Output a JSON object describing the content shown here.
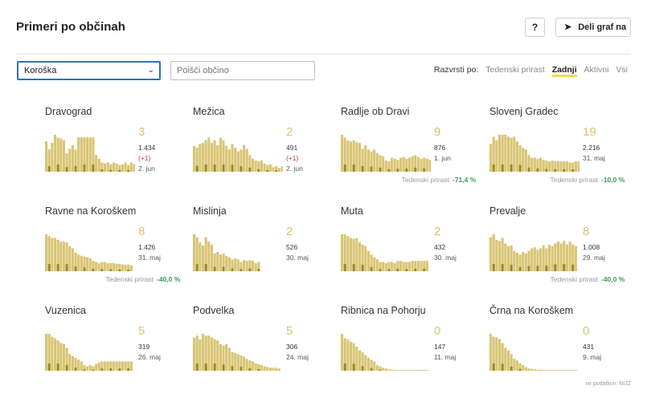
{
  "header": {
    "title": "Primeri po občinah",
    "help_label": "?",
    "share_label": "Deli graf na"
  },
  "controls": {
    "region_value": "Koroška",
    "search_placeholder": "Poišči občino",
    "sort_label": "Razvrsti po:",
    "sort_options": [
      "Tedenski prirast",
      "Zadnji",
      "Aktivni",
      "Vsi"
    ],
    "sort_active": "Zadnji"
  },
  "trend_label": "Tedenski prirast",
  "source_text": "vir podatkov: NIJZ",
  "colors": {
    "bar": "#d9c473",
    "bar_dark": "#9a8a1e",
    "count": "#d9c473",
    "positive": "#3d9a55",
    "accent": "#f1dd44"
  },
  "municipalities": [
    {
      "name": "Dravograd",
      "count": "3",
      "total": "1.434",
      "delta": "(+1)",
      "date": "2. jun",
      "trend": "",
      "bars": [
        0.82,
        0.6,
        0.78,
        1.0,
        0.92,
        0.9,
        0.85,
        0.5,
        0.62,
        0.72,
        0.6,
        0.93,
        0.93,
        0.93,
        0.93,
        0.93,
        0.93,
        0.45,
        0.35,
        0.25,
        0.22,
        0.25,
        0.2,
        0.25,
        0.22,
        0.18,
        0.2,
        0.25,
        0.18,
        0.25,
        0.2,
        0.12
      ]
    },
    {
      "name": "Mežica",
      "count": "2",
      "total": "491",
      "delta": "(+1)",
      "date": "2. jun",
      "trend": "",
      "bars": [
        0.7,
        0.65,
        0.75,
        0.78,
        0.85,
        0.92,
        0.78,
        0.85,
        0.72,
        0.92,
        0.85,
        0.7,
        0.6,
        0.75,
        0.65,
        0.55,
        0.6,
        0.72,
        0.62,
        0.45,
        0.35,
        0.3,
        0.28,
        0.3,
        0.22,
        0.18,
        0.2,
        0.12,
        0.15,
        0.1,
        0.15,
        0.12
      ]
    },
    {
      "name": "Radlje ob Dravi",
      "count": "9",
      "total": "876",
      "delta": "",
      "date": "1. jun",
      "trend": "-71,4 %",
      "bars": [
        1.0,
        0.92,
        0.85,
        0.82,
        0.85,
        0.8,
        0.78,
        0.62,
        0.72,
        0.6,
        0.55,
        0.6,
        0.5,
        0.45,
        0.42,
        0.3,
        0.28,
        0.38,
        0.35,
        0.32,
        0.38,
        0.4,
        0.35,
        0.38,
        0.42,
        0.45,
        0.4,
        0.35,
        0.38,
        0.35,
        0.32,
        0.28
      ]
    },
    {
      "name": "Slovenj Gradec",
      "count": "19",
      "total": "2.216",
      "delta": "",
      "date": "31. maj",
      "trend": "-10,0 %",
      "bars": [
        0.75,
        0.95,
        0.85,
        1.0,
        1.0,
        1.0,
        0.95,
        0.92,
        0.95,
        0.82,
        0.72,
        0.65,
        0.6,
        0.45,
        0.38,
        0.38,
        0.35,
        0.38,
        0.32,
        0.3,
        0.28,
        0.3,
        0.28,
        0.28,
        0.28,
        0.28,
        0.28,
        0.25,
        0.25,
        0.28,
        0.28,
        0.25
      ]
    },
    {
      "name": "Ravne na Koroškem",
      "count": "8",
      "total": "1.426",
      "delta": "",
      "date": "31. maj",
      "trend": "-40,0 %",
      "bars": [
        1.0,
        0.95,
        0.9,
        0.9,
        0.85,
        0.8,
        0.8,
        0.78,
        0.68,
        0.62,
        0.5,
        0.45,
        0.42,
        0.4,
        0.38,
        0.35,
        0.28,
        0.25,
        0.22,
        0.25,
        0.25,
        0.22,
        0.22,
        0.22,
        0.2,
        0.2,
        0.18,
        0.18,
        0.18,
        0.16
      ]
    },
    {
      "name": "Mislinja",
      "count": "2",
      "total": "526",
      "delta": "",
      "date": "30. maj",
      "trend": "",
      "bars": [
        1.0,
        0.92,
        0.78,
        0.7,
        0.92,
        0.8,
        0.72,
        0.48,
        0.52,
        0.45,
        0.48,
        0.42,
        0.38,
        0.32,
        0.35,
        0.32,
        0.25,
        0.3,
        0.28,
        0.3,
        0.28,
        0.22,
        0.25,
        0.0,
        0.0,
        0.0,
        0.0,
        0.0,
        0.0,
        0.0
      ]
    },
    {
      "name": "Muta",
      "count": "2",
      "total": "432",
      "delta": "",
      "date": "30. maj",
      "trend": "",
      "bars": [
        1.0,
        1.0,
        0.95,
        0.9,
        0.88,
        0.9,
        0.78,
        0.72,
        0.68,
        0.55,
        0.45,
        0.38,
        0.32,
        0.25,
        0.25,
        0.22,
        0.25,
        0.25,
        0.22,
        0.28,
        0.28,
        0.25,
        0.25,
        0.25,
        0.28,
        0.28,
        0.28,
        0.28,
        0.28,
        0.28
      ]
    },
    {
      "name": "Prevalje",
      "count": "8",
      "total": "1.008",
      "delta": "",
      "date": "29. maj",
      "trend": "-40,0 %",
      "bars": [
        0.92,
        1.0,
        0.85,
        0.82,
        0.9,
        0.75,
        0.68,
        0.7,
        0.55,
        0.5,
        0.45,
        0.52,
        0.48,
        0.55,
        0.62,
        0.65,
        0.58,
        0.62,
        0.7,
        0.62,
        0.72,
        0.68,
        0.75,
        0.8,
        0.75,
        0.82,
        0.72,
        0.8,
        0.72,
        0.68
      ]
    },
    {
      "name": "Vuzenica",
      "count": "5",
      "total": "319",
      "delta": "",
      "date": "26. maj",
      "trend": "",
      "bars": [
        1.0,
        1.0,
        0.92,
        0.88,
        0.82,
        0.75,
        0.72,
        0.62,
        0.45,
        0.4,
        0.35,
        0.3,
        0.25,
        0.15,
        0.12,
        0.15,
        0.12,
        0.18,
        0.22,
        0.25,
        0.25,
        0.25,
        0.25,
        0.25,
        0.25,
        0.25,
        0.25,
        0.25,
        0.25,
        0.25
      ]
    },
    {
      "name": "Podvelka",
      "count": "5",
      "total": "306",
      "delta": "",
      "date": "24. maj",
      "trend": "",
      "bars": [
        0.9,
        0.95,
        0.85,
        1.0,
        0.95,
        0.95,
        0.9,
        0.85,
        0.82,
        0.72,
        0.68,
        0.72,
        0.62,
        0.5,
        0.48,
        0.45,
        0.42,
        0.38,
        0.32,
        0.28,
        0.25,
        0.2,
        0.18,
        0.15,
        0.12,
        0.1,
        0.08,
        0.08,
        0.08,
        0.06
      ]
    },
    {
      "name": "Ribnica na Pohorju",
      "count": "0",
      "total": "147",
      "delta": "",
      "date": "11. maj",
      "trend": "",
      "bars": [
        1.0,
        0.88,
        0.85,
        0.78,
        0.75,
        0.65,
        0.55,
        0.5,
        0.42,
        0.35,
        0.3,
        0.25,
        0.15,
        0.12,
        0.08,
        0.06,
        0.04,
        0.03,
        0.02,
        0.02,
        0.02,
        0.02,
        0.02,
        0.02,
        0.02,
        0.02,
        0.02,
        0.02,
        0.02,
        0.02
      ]
    },
    {
      "name": "Črna na Koroškem",
      "count": "0",
      "total": "431",
      "delta": "",
      "date": "9. maj",
      "trend": "",
      "bars": [
        1.0,
        0.92,
        0.9,
        0.85,
        0.75,
        0.62,
        0.55,
        0.45,
        0.32,
        0.28,
        0.2,
        0.15,
        0.1,
        0.06,
        0.05,
        0.04,
        0.03,
        0.03,
        0.02,
        0.02,
        0.02,
        0.02,
        0.02,
        0.02,
        0.02,
        0.02,
        0.02,
        0.02,
        0.02,
        0.02
      ]
    }
  ]
}
